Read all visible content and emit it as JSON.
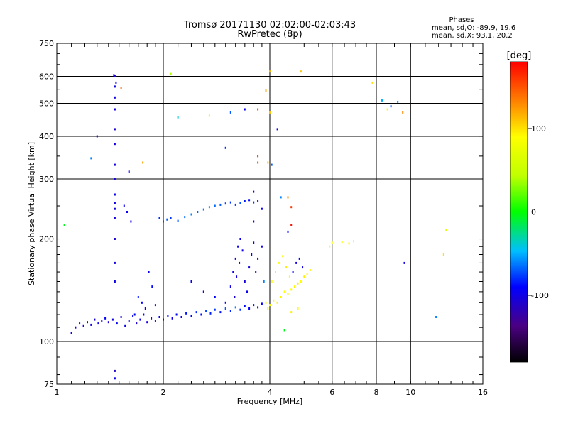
{
  "title_line1": "Tromsø 20171130 02:02:00-02:03:43",
  "title_line2": "RwPretec (8p)",
  "phases": {
    "title": "Phases",
    "line_o": "mean, sd,O: -89.9, 19.6",
    "line_x": "mean, sd,X:  93.1, 20.2"
  },
  "colorbar": {
    "label": "[deg]",
    "range": [
      -180,
      180
    ],
    "ticks": [
      100,
      0,
      -100
    ],
    "tick_labels": [
      "100",
      "0",
      "-100"
    ]
  },
  "chart_data": {
    "type": "scatter",
    "xlabel": "Frequency [MHz]",
    "ylabel": "Stationary phase Virtual Height [km]",
    "x_scale": "log2",
    "y_scale": "log",
    "xlim": [
      1,
      16
    ],
    "ylim": [
      75,
      750
    ],
    "x_ticks": [
      1,
      2,
      4,
      6,
      8,
      10,
      16
    ],
    "x_tick_labels": [
      "1",
      "2",
      "4",
      "6",
      "8",
      "10",
      "16"
    ],
    "y_ticks": [
      75,
      100,
      200,
      300,
      400,
      500,
      600,
      750
    ],
    "y_tick_labels": [
      "75",
      "100",
      "200",
      "300",
      "400",
      "500",
      "600",
      "750"
    ],
    "grid": true,
    "points": [
      [
        1.1,
        106,
        -100
      ],
      [
        1.13,
        110,
        -105
      ],
      [
        1.16,
        113,
        -95
      ],
      [
        1.19,
        111,
        -110
      ],
      [
        1.22,
        114,
        -100
      ],
      [
        1.25,
        112,
        -98
      ],
      [
        1.28,
        116,
        -104
      ],
      [
        1.31,
        113,
        -96
      ],
      [
        1.34,
        115,
        -102
      ],
      [
        1.37,
        117,
        -90
      ],
      [
        1.4,
        114,
        -108
      ],
      [
        1.44,
        116,
        -100
      ],
      [
        1.48,
        113,
        -95
      ],
      [
        1.52,
        118,
        -103
      ],
      [
        1.56,
        111,
        -99
      ],
      [
        1.6,
        115,
        -101
      ],
      [
        1.64,
        119,
        -92
      ],
      [
        1.68,
        113,
        -106
      ],
      [
        1.72,
        116,
        -97
      ],
      [
        1.76,
        120,
        -94
      ],
      [
        1.8,
        114,
        -100
      ],
      [
        1.85,
        117,
        -88
      ],
      [
        1.9,
        115,
        -102
      ],
      [
        1.95,
        118,
        -95
      ],
      [
        2.0,
        116,
        -99
      ],
      [
        2.06,
        119,
        -93
      ],
      [
        2.12,
        117,
        -100
      ],
      [
        2.18,
        120,
        -90
      ],
      [
        2.25,
        118,
        -96
      ],
      [
        2.32,
        121,
        -85
      ],
      [
        2.4,
        119,
        -92
      ],
      [
        2.48,
        122,
        -80
      ],
      [
        2.56,
        120,
        -88
      ],
      [
        2.64,
        123,
        -75
      ],
      [
        2.72,
        121,
        -83
      ],
      [
        2.8,
        124,
        -78
      ],
      [
        2.9,
        122,
        -86
      ],
      [
        3.0,
        125,
        -70
      ],
      [
        3.1,
        123,
        -82
      ],
      [
        3.2,
        126,
        -60
      ],
      [
        3.3,
        124,
        -80
      ],
      [
        3.4,
        127,
        -88
      ],
      [
        3.5,
        125,
        -92
      ],
      [
        3.6,
        128,
        -85
      ],
      [
        3.7,
        126,
        -96
      ],
      [
        3.8,
        129,
        -90
      ],
      [
        1.46,
        150,
        -98
      ],
      [
        1.46,
        170,
        -100
      ],
      [
        1.46,
        200,
        -105
      ],
      [
        1.46,
        230,
        -100
      ],
      [
        1.46,
        270,
        -95
      ],
      [
        1.46,
        300,
        -102
      ],
      [
        1.46,
        330,
        -98
      ],
      [
        1.46,
        380,
        -100
      ],
      [
        1.46,
        420,
        -104
      ],
      [
        1.46,
        480,
        -100
      ],
      [
        1.46,
        520,
        -96
      ],
      [
        1.46,
        560,
        -100
      ],
      [
        1.46,
        600,
        -102
      ],
      [
        1.45,
        605,
        -110
      ],
      [
        1.47,
        575,
        -95
      ],
      [
        1.46,
        255,
        -100
      ],
      [
        1.46,
        245,
        -98
      ],
      [
        1.46,
        82,
        -110
      ],
      [
        1.46,
        78,
        -95
      ],
      [
        1.55,
        250,
        -100
      ],
      [
        1.58,
        240,
        -95
      ],
      [
        1.62,
        225,
        -100
      ],
      [
        1.66,
        120,
        -90
      ],
      [
        1.7,
        135,
        -85
      ],
      [
        1.74,
        130,
        -92
      ],
      [
        1.78,
        125,
        -100
      ],
      [
        1.82,
        160,
        -95
      ],
      [
        1.86,
        145,
        -88
      ],
      [
        1.9,
        128,
        -96
      ],
      [
        1.95,
        230,
        -80
      ],
      [
        2.0,
        225,
        -75
      ],
      [
        2.05,
        228,
        -70
      ],
      [
        2.1,
        230,
        -78
      ],
      [
        2.2,
        226,
        -72
      ],
      [
        2.3,
        232,
        -65
      ],
      [
        2.4,
        236,
        -60
      ],
      [
        2.5,
        240,
        -68
      ],
      [
        2.6,
        244,
        -62
      ],
      [
        2.7,
        248,
        -55
      ],
      [
        2.8,
        250,
        -66
      ],
      [
        2.9,
        252,
        -70
      ],
      [
        3.0,
        254,
        -75
      ],
      [
        3.1,
        256,
        -80
      ],
      [
        3.2,
        252,
        -78
      ],
      [
        3.3,
        255,
        -72
      ],
      [
        3.4,
        258,
        -85
      ],
      [
        3.5,
        260,
        -88
      ],
      [
        3.6,
        256,
        -80
      ],
      [
        3.7,
        258,
        -86
      ],
      [
        2.4,
        150,
        -95
      ],
      [
        2.6,
        140,
        -100
      ],
      [
        2.8,
        135,
        -92
      ],
      [
        3.0,
        130,
        -88
      ],
      [
        3.1,
        145,
        -100
      ],
      [
        3.15,
        160,
        -98
      ],
      [
        3.2,
        175,
        -102
      ],
      [
        3.25,
        190,
        -100
      ],
      [
        3.3,
        200,
        -96
      ],
      [
        3.18,
        135,
        -105
      ],
      [
        3.22,
        155,
        -100
      ],
      [
        3.28,
        170,
        -94
      ],
      [
        3.35,
        185,
        -98
      ],
      [
        3.4,
        150,
        -102
      ],
      [
        3.45,
        140,
        -95
      ],
      [
        3.5,
        165,
        -100
      ],
      [
        3.55,
        180,
        -90
      ],
      [
        3.6,
        195,
        -96
      ],
      [
        3.65,
        160,
        -100
      ],
      [
        3.7,
        175,
        -92
      ],
      [
        3.8,
        190,
        -98
      ],
      [
        3.85,
        150,
        -60
      ],
      [
        3.9,
        130,
        80
      ],
      [
        3.95,
        125,
        85
      ],
      [
        4.0,
        128,
        90
      ],
      [
        4.1,
        132,
        88
      ],
      [
        4.2,
        130,
        92
      ],
      [
        4.3,
        135,
        95
      ],
      [
        4.4,
        140,
        90
      ],
      [
        4.5,
        138,
        94
      ],
      [
        4.6,
        142,
        88
      ],
      [
        4.7,
        145,
        92
      ],
      [
        4.8,
        148,
        96
      ],
      [
        4.9,
        150,
        90
      ],
      [
        5.0,
        155,
        95
      ],
      [
        5.1,
        158,
        92
      ],
      [
        5.2,
        162,
        94
      ],
      [
        4.05,
        150,
        90
      ],
      [
        4.15,
        160,
        95
      ],
      [
        4.25,
        170,
        88
      ],
      [
        4.35,
        178,
        92
      ],
      [
        4.45,
        165,
        96
      ],
      [
        4.55,
        155,
        90
      ],
      [
        4.65,
        160,
        -95
      ],
      [
        4.75,
        170,
        -100
      ],
      [
        4.85,
        175,
        -90
      ],
      [
        4.95,
        165,
        -98
      ],
      [
        6.0,
        195,
        85
      ],
      [
        6.4,
        196,
        88
      ],
      [
        6.7,
        194,
        92
      ],
      [
        6.9,
        197,
        90
      ],
      [
        5.9,
        190,
        90
      ],
      [
        4.4,
        108,
        -5
      ],
      [
        4.6,
        122,
        95
      ],
      [
        4.8,
        125,
        90
      ],
      [
        8.3,
        510,
        -50
      ],
      [
        8.6,
        480,
        80
      ],
      [
        8.8,
        490,
        -70
      ],
      [
        9.2,
        505,
        -60
      ],
      [
        7.8,
        575,
        100
      ],
      [
        9.5,
        470,
        130
      ],
      [
        11.8,
        118,
        -60
      ],
      [
        12.4,
        180,
        100
      ],
      [
        12.6,
        212,
        70
      ],
      [
        9.6,
        170,
        -100
      ],
      [
        4.9,
        620,
        110
      ],
      [
        4.0,
        620,
        115
      ],
      [
        3.9,
        545,
        120
      ],
      [
        4.0,
        470,
        110
      ],
      [
        3.4,
        480,
        -95
      ],
      [
        3.1,
        470,
        -70
      ],
      [
        2.7,
        460,
        60
      ],
      [
        2.2,
        455,
        -40
      ],
      [
        3.7,
        480,
        155
      ],
      [
        3.7,
        350,
        160
      ],
      [
        3.7,
        335,
        150
      ],
      [
        3.95,
        335,
        110
      ],
      [
        4.05,
        330,
        -70
      ],
      [
        4.2,
        420,
        -100
      ],
      [
        4.3,
        265,
        -60
      ],
      [
        4.5,
        265,
        130
      ],
      [
        4.6,
        248,
        160
      ],
      [
        4.6,
        220,
        175
      ],
      [
        4.5,
        210,
        -95
      ],
      [
        3.6,
        275,
        -100
      ],
      [
        3.8,
        245,
        -95
      ],
      [
        3.6,
        225,
        -100
      ],
      [
        1.3,
        400,
        -100
      ],
      [
        1.25,
        345,
        -60
      ],
      [
        1.75,
        335,
        120
      ],
      [
        1.6,
        315,
        -90
      ],
      [
        1.52,
        555,
        140
      ],
      [
        2.1,
        610,
        40
      ],
      [
        1.05,
        220,
        -5
      ],
      [
        3.0,
        370,
        -80
      ]
    ]
  }
}
